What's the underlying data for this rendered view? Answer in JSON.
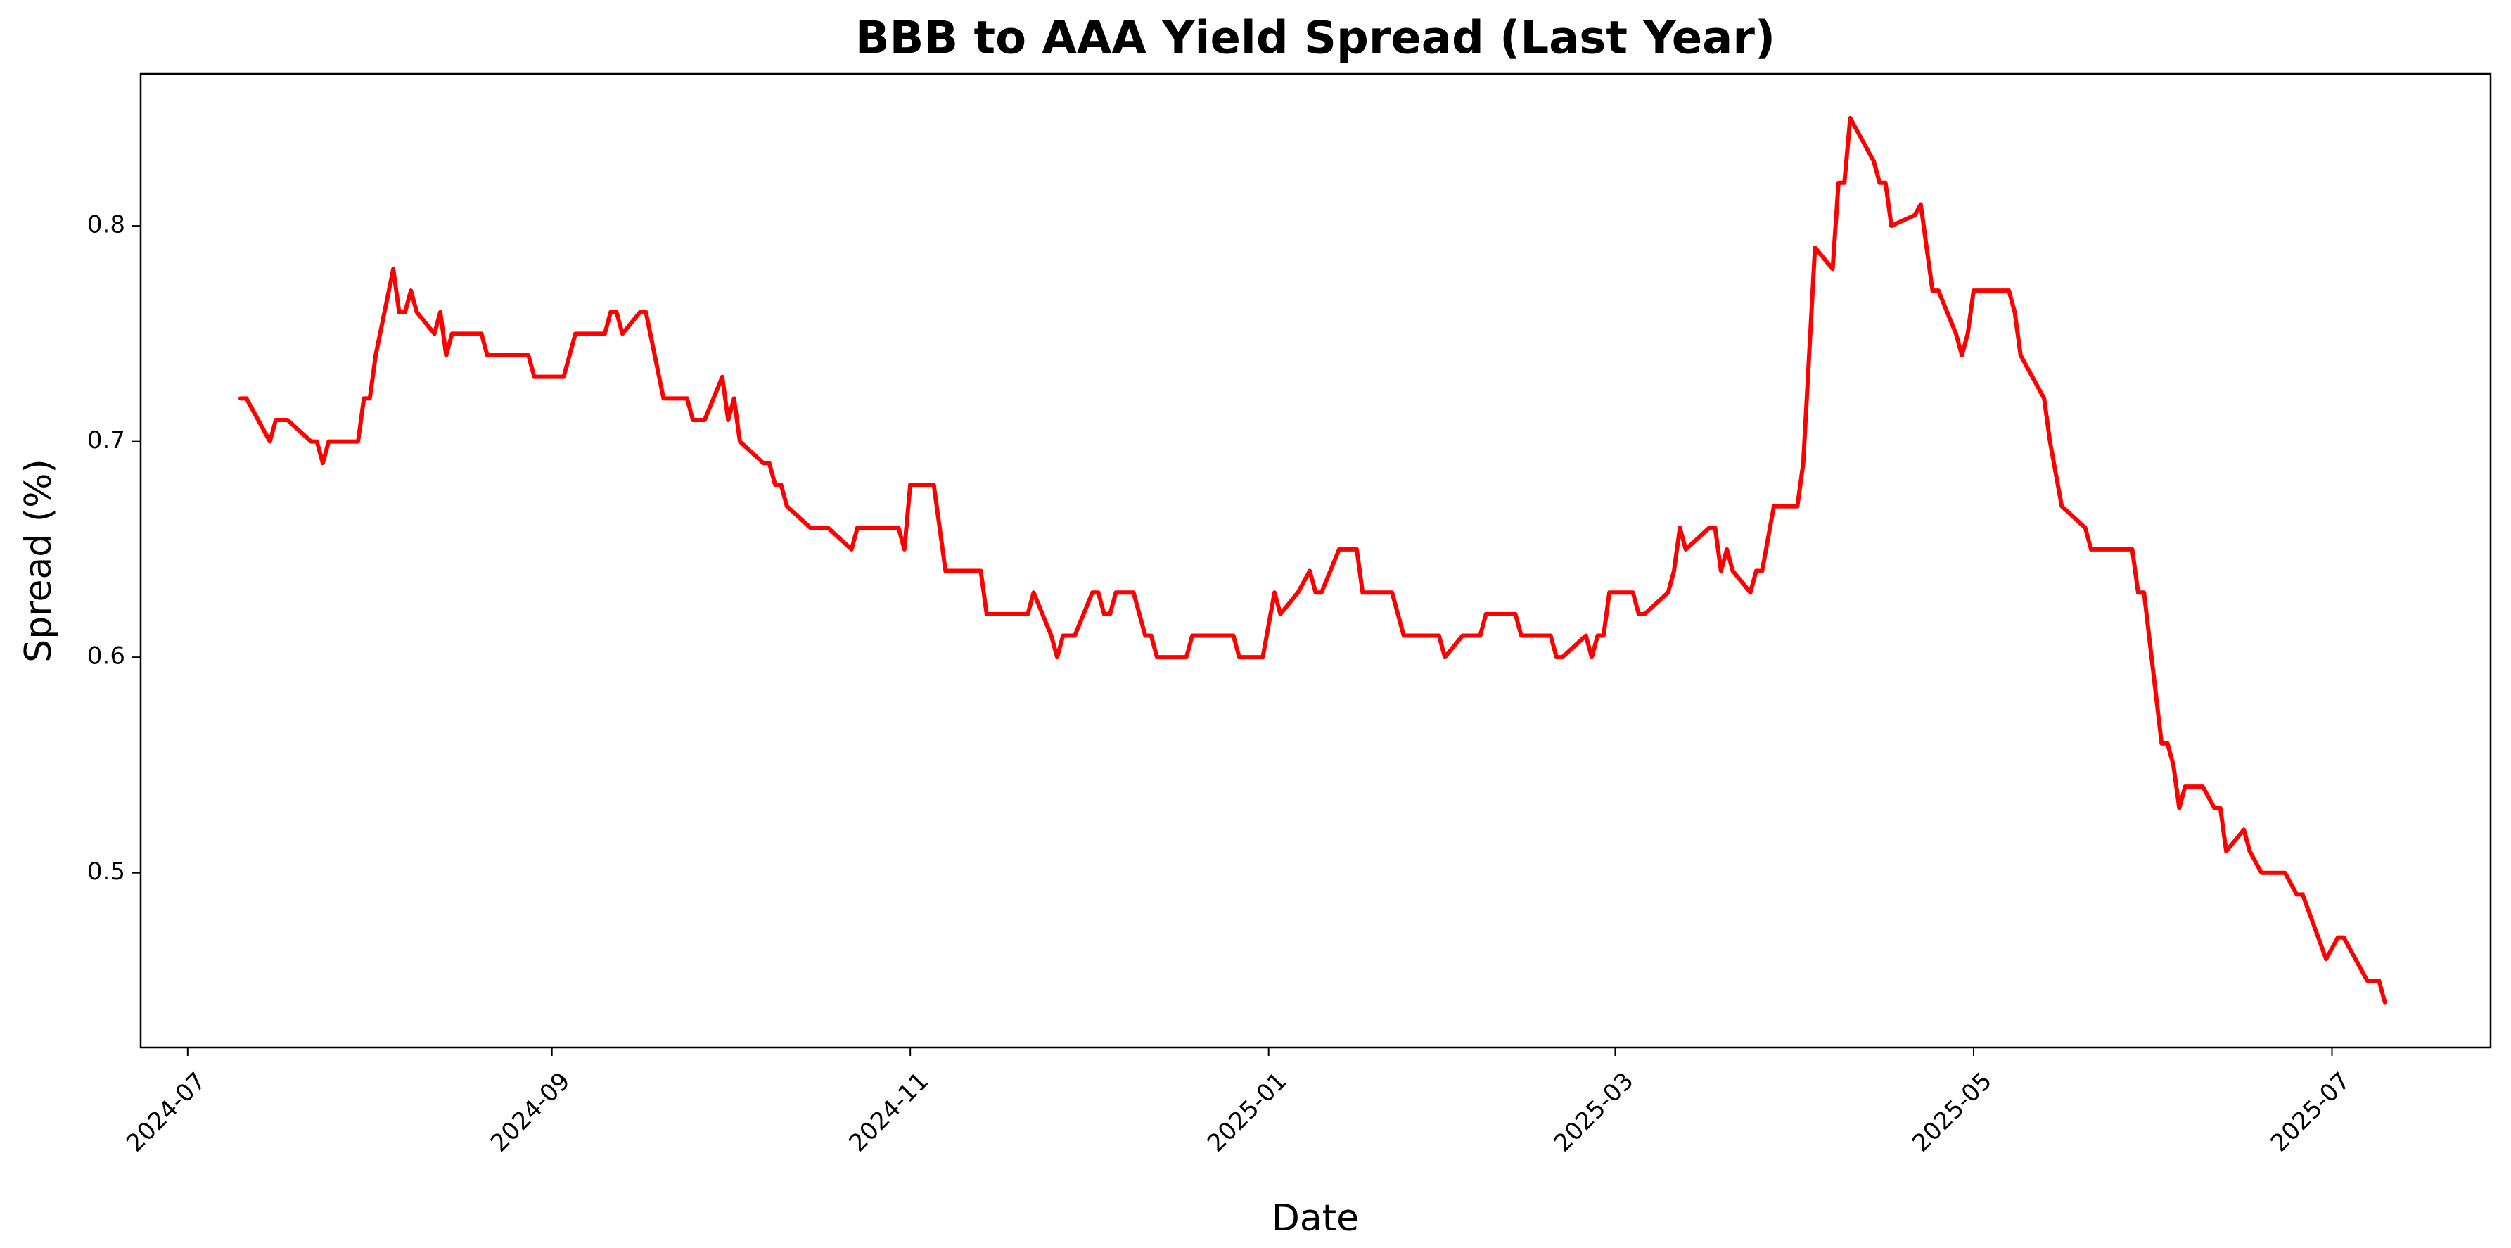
{
  "chart_data": {
    "type": "line",
    "title": "BBB to AAA Yield Spread (Last Year)",
    "x_label": "Date",
    "y_label": "Spread (%)",
    "x": [
      "2024-07-10",
      "2024-07-11",
      "2024-07-15",
      "2024-07-16",
      "2024-07-18",
      "2024-07-22",
      "2024-07-23",
      "2024-07-24",
      "2024-07-25",
      "2024-07-30",
      "2024-07-31",
      "2024-08-01",
      "2024-08-02",
      "2024-08-05",
      "2024-08-06",
      "2024-08-07",
      "2024-08-08",
      "2024-08-09",
      "2024-08-12",
      "2024-08-13",
      "2024-08-14",
      "2024-08-15",
      "2024-08-20",
      "2024-08-21",
      "2024-08-28",
      "2024-08-29",
      "2024-09-03",
      "2024-09-05",
      "2024-09-10",
      "2024-09-11",
      "2024-09-12",
      "2024-09-13",
      "2024-09-16",
      "2024-09-17",
      "2024-09-20",
      "2024-09-24",
      "2024-09-25",
      "2024-09-27",
      "2024-09-30",
      "2024-10-01",
      "2024-10-02",
      "2024-10-03",
      "2024-10-07",
      "2024-10-08",
      "2024-10-09",
      "2024-10-10",
      "2024-10-11",
      "2024-10-15",
      "2024-10-18",
      "2024-10-22",
      "2024-10-23",
      "2024-10-30",
      "2024-10-31",
      "2024-11-01",
      "2024-11-05",
      "2024-11-06",
      "2024-11-07",
      "2024-11-13",
      "2024-11-14",
      "2024-11-21",
      "2024-11-22",
      "2024-11-25",
      "2024-11-26",
      "2024-11-27",
      "2024-11-29",
      "2024-12-02",
      "2024-12-03",
      "2024-12-04",
      "2024-12-05",
      "2024-12-06",
      "2024-12-09",
      "2024-12-10",
      "2024-12-11",
      "2024-12-12",
      "2024-12-13",
      "2024-12-18",
      "2024-12-19",
      "2024-12-26",
      "2024-12-27",
      "2024-12-31",
      "2025-01-02",
      "2025-01-03",
      "2025-01-06",
      "2025-01-08",
      "2025-01-09",
      "2025-01-10",
      "2025-01-13",
      "2025-01-16",
      "2025-01-17",
      "2025-01-22",
      "2025-01-23",
      "2025-01-24",
      "2025-01-30",
      "2025-01-31",
      "2025-02-03",
      "2025-02-06",
      "2025-02-07",
      "2025-02-12",
      "2025-02-13",
      "2025-02-18",
      "2025-02-19",
      "2025-02-20",
      "2025-02-24",
      "2025-02-25",
      "2025-02-26",
      "2025-02-27",
      "2025-02-28",
      "2025-03-04",
      "2025-03-05",
      "2025-03-06",
      "2025-03-10",
      "2025-03-11",
      "2025-03-12",
      "2025-03-13",
      "2025-03-17",
      "2025-03-18",
      "2025-03-19",
      "2025-03-20",
      "2025-03-21",
      "2025-03-24",
      "2025-03-25",
      "2025-03-26",
      "2025-03-28",
      "2025-04-01",
      "2025-04-02",
      "2025-04-03",
      "2025-04-04",
      "2025-04-07",
      "2025-04-08",
      "2025-04-09",
      "2025-04-10",
      "2025-04-14",
      "2025-04-15",
      "2025-04-16",
      "2025-04-17",
      "2025-04-21",
      "2025-04-22",
      "2025-04-24",
      "2025-04-25",
      "2025-04-28",
      "2025-04-29",
      "2025-04-30",
      "2025-05-01",
      "2025-05-07",
      "2025-05-08",
      "2025-05-09",
      "2025-05-13",
      "2025-05-14",
      "2025-05-16",
      "2025-05-20",
      "2025-05-21",
      "2025-05-28",
      "2025-05-29",
      "2025-05-30",
      "2025-06-02",
      "2025-06-03",
      "2025-06-04",
      "2025-06-05",
      "2025-06-06",
      "2025-06-09",
      "2025-06-11",
      "2025-06-12",
      "2025-06-13",
      "2025-06-16",
      "2025-06-17",
      "2025-06-19",
      "2025-06-23",
      "2025-06-25",
      "2025-06-26",
      "2025-06-30",
      "2025-07-02",
      "2025-07-03",
      "2025-07-07",
      "2025-07-09",
      "2025-07-10"
    ],
    "series": [
      {
        "color": "#ff0000",
        "values": [
          0.72,
          0.72,
          0.7,
          0.71,
          0.71,
          0.7,
          0.7,
          0.69,
          0.7,
          0.7,
          0.72,
          0.72,
          0.74,
          0.78,
          0.76,
          0.76,
          0.77,
          0.76,
          0.75,
          0.76,
          0.74,
          0.75,
          0.75,
          0.74,
          0.74,
          0.73,
          0.73,
          0.75,
          0.75,
          0.76,
          0.76,
          0.75,
          0.76,
          0.76,
          0.72,
          0.72,
          0.71,
          0.71,
          0.73,
          0.71,
          0.72,
          0.7,
          0.69,
          0.69,
          0.68,
          0.68,
          0.67,
          0.66,
          0.66,
          0.65,
          0.66,
          0.66,
          0.65,
          0.68,
          0.68,
          0.66,
          0.64,
          0.64,
          0.62,
          0.62,
          0.63,
          0.61,
          0.6,
          0.61,
          0.61,
          0.63,
          0.63,
          0.62,
          0.62,
          0.63,
          0.63,
          0.62,
          0.61,
          0.61,
          0.6,
          0.6,
          0.61,
          0.61,
          0.6,
          0.6,
          0.63,
          0.62,
          0.63,
          0.64,
          0.63,
          0.63,
          0.65,
          0.65,
          0.63,
          0.63,
          0.62,
          0.61,
          0.61,
          0.6,
          0.61,
          0.61,
          0.62,
          0.62,
          0.61,
          0.61,
          0.6,
          0.6,
          0.61,
          0.6,
          0.61,
          0.61,
          0.63,
          0.63,
          0.62,
          0.62,
          0.63,
          0.64,
          0.66,
          0.65,
          0.66,
          0.66,
          0.64,
          0.65,
          0.64,
          0.63,
          0.64,
          0.64,
          0.67,
          0.67,
          0.69,
          0.74,
          0.79,
          0.78,
          0.82,
          0.82,
          0.85,
          0.83,
          0.82,
          0.82,
          0.8,
          0.805,
          0.81,
          0.77,
          0.77,
          0.75,
          0.74,
          0.75,
          0.77,
          0.77,
          0.76,
          0.74,
          0.72,
          0.7,
          0.67,
          0.66,
          0.65,
          0.65,
          0.63,
          0.63,
          0.56,
          0.56,
          0.55,
          0.53,
          0.54,
          0.54,
          0.53,
          0.53,
          0.51,
          0.52,
          0.51,
          0.5,
          0.5,
          0.49,
          0.49,
          0.46,
          0.47,
          0.47,
          0.45,
          0.45,
          0.44
        ]
      }
    ],
    "xlim": [
      "2024-06-23",
      "2025-07-28"
    ],
    "xticks": [
      "2024-07",
      "2024-09",
      "2024-11",
      "2025-01",
      "2025-03",
      "2025-05",
      "2025-07"
    ],
    "ylim": [
      0.419,
      0.8705
    ],
    "yticks": [
      0.5,
      0.6,
      0.7,
      0.8
    ],
    "grid": false
  }
}
